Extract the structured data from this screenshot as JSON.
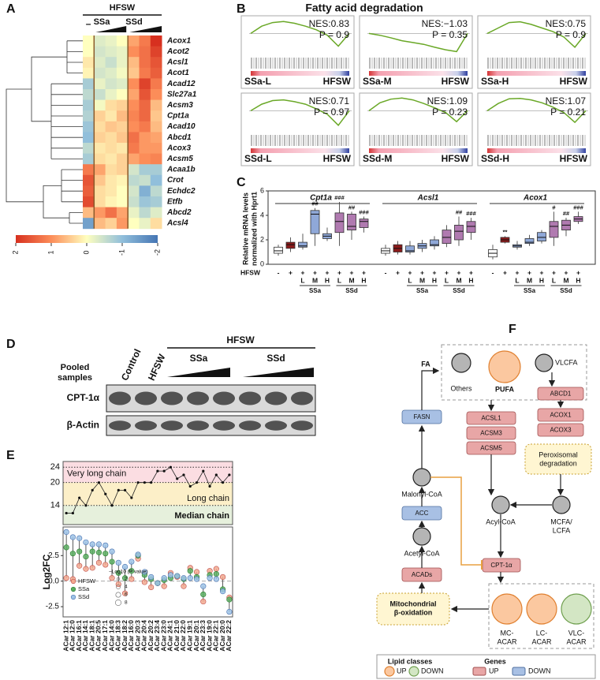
{
  "panel_labels": [
    "A",
    "B",
    "C",
    "D",
    "E",
    "F"
  ],
  "heatmap": {
    "header": "HFSW",
    "control": "–",
    "groups": [
      "SSa",
      "SSd"
    ],
    "genes": [
      "Acox1",
      "Acot2",
      "Acsl1",
      "Acot1",
      "Acad12",
      "Slc27a1",
      "Acsm3",
      "Cpt1a",
      "Acad10",
      "Abcd1",
      "Acox3",
      "Acsm5",
      "Acaa1b",
      "Crot",
      "Echdc2",
      "Etfb",
      "Abcd2",
      "Acsl4"
    ],
    "values": [
      [
        0,
        -0.3,
        -0.2,
        0,
        0.8,
        1.2,
        2.0
      ],
      [
        0,
        -0.4,
        -0.3,
        -0.2,
        1.0,
        1.3,
        1.8
      ],
      [
        0.2,
        -0.3,
        -0.5,
        -0.2,
        0.6,
        1.3,
        1.6
      ],
      [
        0.1,
        -0.4,
        -0.3,
        -0.1,
        0.5,
        1.2,
        1.5
      ],
      [
        -0.8,
        -0.2,
        -0.4,
        -0.3,
        1.0,
        1.8,
        1.2
      ],
      [
        -0.6,
        -0.5,
        -0.2,
        0,
        0.8,
        1.6,
        1.0
      ],
      [
        -0.8,
        -0.1,
        0.3,
        0.4,
        1.0,
        1.4,
        0.6
      ],
      [
        -0.7,
        0.4,
        0.2,
        0.6,
        1.1,
        1.4,
        0.5
      ],
      [
        -0.9,
        0.3,
        0.5,
        0.4,
        1.0,
        1.2,
        0.6
      ],
      [
        -1.0,
        0.4,
        0.3,
        0.5,
        1.3,
        0.9,
        0.8
      ],
      [
        -0.6,
        0.2,
        0.3,
        0.2,
        1.2,
        0.9,
        0.9
      ],
      [
        -0.8,
        0.3,
        0.2,
        0.4,
        0.8,
        1.0,
        1.1
      ],
      [
        1.2,
        0.8,
        0.3,
        0.4,
        -0.4,
        -0.8,
        -0.8
      ],
      [
        1.6,
        0.5,
        0.2,
        0.1,
        -0.6,
        -0.5,
        -1.0
      ],
      [
        1.5,
        0.3,
        0.2,
        0.0,
        -0.4,
        -1.2,
        -0.6
      ],
      [
        1.7,
        0.3,
        0.1,
        0.0,
        -0.5,
        -0.9,
        -0.8
      ],
      [
        0.6,
        0.9,
        1.3,
        0.8,
        -0.2,
        -0.6,
        -0.3
      ],
      [
        -1.4,
        0.6,
        0.4,
        0.9,
        0.0,
        -0.2,
        0.3
      ]
    ],
    "scale_ticks": [
      2,
      1,
      0,
      -1,
      -2
    ],
    "scale_colors": [
      "#d7301f",
      "#fc8d59",
      "#ffffbf",
      "#91bfdb",
      "#4575b4"
    ]
  },
  "gsea": {
    "title": "Fatty acid degradation",
    "es_ylim": [
      -0.6,
      0.4
    ],
    "plots": [
      {
        "group": "SSa-L",
        "ref": "HFSW",
        "nes": "NES:0.83",
        "p": "P = 0.9",
        "es": [
          0,
          0.2,
          0.3,
          0.33,
          0.28,
          0.2,
          0.1,
          -0.05,
          -0.35,
          0
        ]
      },
      {
        "group": "SSa-M",
        "ref": "HFSW",
        "nes": "NES:−1.03",
        "p": "P = 0.35",
        "es": [
          0,
          -0.05,
          -0.12,
          -0.2,
          -0.25,
          -0.3,
          -0.38,
          -0.45,
          -0.5,
          0
        ]
      },
      {
        "group": "SSa-H",
        "ref": "HFSW",
        "nes": "NES:0.75",
        "p": "P = 0.9",
        "es": [
          0,
          0.15,
          0.3,
          0.32,
          0.25,
          0.15,
          0.05,
          -0.1,
          -0.38,
          0
        ]
      },
      {
        "group": "SSd-L",
        "ref": "HFSW",
        "nes": "NES:0.71",
        "p": "P = 0.97",
        "es": [
          0,
          0.18,
          0.28,
          0.3,
          0.25,
          0.18,
          0.05,
          -0.1,
          -0.4,
          0
        ]
      },
      {
        "group": "SSd-M",
        "ref": "HFSW",
        "nes": "NES:1.09",
        "p": "P = 0.23",
        "es": [
          0,
          0.22,
          0.32,
          0.35,
          0.3,
          0.2,
          0.08,
          -0.05,
          -0.3,
          0
        ]
      },
      {
        "group": "SSd-H",
        "ref": "HFSW",
        "nes": "NES:1.07",
        "p": "P = 0.21",
        "es": [
          0,
          0.2,
          0.33,
          0.34,
          0.3,
          0.22,
          0.1,
          -0.05,
          -0.32,
          0
        ]
      }
    ]
  },
  "qpcr": {
    "ylabel": [
      "Relative mRNA levels",
      "normalized with Hprt1"
    ],
    "ylim": [
      0,
      6
    ],
    "yticks": [
      0,
      2,
      4,
      6
    ],
    "hfsw_label": "HFSW",
    "signs": [
      "-",
      "+",
      "+",
      "+",
      "+",
      "+",
      "+",
      "+"
    ],
    "doses": [
      null,
      null,
      "L",
      "M",
      "H",
      "L",
      "M",
      "H"
    ],
    "groups": [
      "SSa",
      "SSd"
    ],
    "colors": [
      "#ffffff",
      "#8b1a1a",
      "#8fa8d8",
      "#8fa8d8",
      "#8fa8d8",
      "#b07ab0",
      "#b07ab0",
      "#b07ab0"
    ],
    "genes": [
      {
        "name": "Cpt1a",
        "boxes": [
          [
            0.7,
            0.9,
            1.1,
            1.4,
            1.6
          ],
          [
            1.0,
            1.3,
            1.6,
            1.8,
            2.2
          ],
          [
            1.2,
            1.4,
            1.5,
            1.8,
            2.5
          ],
          [
            1.5,
            2.5,
            4.1,
            4.4,
            4.6
          ],
          [
            1.9,
            2.1,
            2.3,
            2.5,
            3.0
          ],
          [
            1.5,
            2.6,
            3.5,
            4.2,
            5.1
          ],
          [
            2.0,
            2.8,
            3.1,
            4.1,
            4.3
          ],
          [
            2.6,
            3.0,
            3.5,
            3.7,
            3.9
          ]
        ],
        "marks": [
          null,
          null,
          null,
          "##",
          null,
          "###",
          "##",
          "###"
        ]
      },
      {
        "name": "Acsl1",
        "boxes": [
          [
            0.7,
            0.9,
            1.1,
            1.3,
            1.6
          ],
          [
            0.8,
            1.0,
            1.3,
            1.6,
            1.9
          ],
          [
            0.8,
            1.0,
            1.1,
            1.5,
            1.9
          ],
          [
            1.0,
            1.3,
            1.5,
            1.7,
            2.0
          ],
          [
            1.2,
            1.5,
            1.6,
            2.0,
            2.3
          ],
          [
            1.4,
            1.7,
            2.2,
            2.8,
            3.2
          ],
          [
            1.5,
            2.0,
            2.7,
            3.2,
            3.9
          ],
          [
            2.0,
            2.6,
            3.1,
            3.5,
            3.8
          ]
        ],
        "marks": [
          null,
          null,
          null,
          null,
          null,
          null,
          "##",
          "###"
        ]
      },
      {
        "name": "Acox1",
        "boxes": [
          [
            0.4,
            0.6,
            0.9,
            1.2,
            1.6
          ],
          [
            1.7,
            1.8,
            2.0,
            2.2,
            2.3
          ],
          [
            1.2,
            1.4,
            1.5,
            1.6,
            1.9
          ],
          [
            1.5,
            1.7,
            1.8,
            2.1,
            2.4
          ],
          [
            1.7,
            1.9,
            2.2,
            2.6,
            2.8
          ],
          [
            1.5,
            2.2,
            3.1,
            3.5,
            4.3
          ],
          [
            2.3,
            2.8,
            3.2,
            3.6,
            3.8
          ],
          [
            3.3,
            3.5,
            3.7,
            3.9,
            4.3
          ]
        ],
        "marks": [
          null,
          "**",
          null,
          null,
          null,
          "#",
          "##",
          "###"
        ]
      }
    ]
  },
  "western": {
    "row_label": [
      "Pooled",
      "samples"
    ],
    "columns": [
      "Control",
      "HFSW"
    ],
    "header": "HFSW",
    "groups": [
      "SSa",
      "SSd"
    ],
    "bands": [
      "CPT-1α",
      "β-Actin"
    ]
  },
  "chain": {
    "ylim": [
      9,
      25.5
    ],
    "yticks": [
      14,
      20,
      24
    ],
    "values": [
      12,
      12,
      16,
      14,
      18,
      20,
      17,
      14,
      18,
      18,
      16,
      20,
      20,
      20,
      23,
      23,
      24,
      21,
      22,
      19,
      20,
      23,
      19,
      22,
      20,
      22
    ],
    "bands": [
      {
        "label": "Very long chain",
        "from": 20,
        "to": 25.5,
        "color": "#fbdde2",
        "text": "#c0182a"
      },
      {
        "label": "Long chain",
        "from": 14,
        "to": 20,
        "color": "#fcefc8",
        "text": "#e0900a"
      },
      {
        "label": "Median chain",
        "from": 9,
        "to": 14,
        "color": "#e6f0dc",
        "text": "#2c9a4a"
      }
    ]
  },
  "lollipop": {
    "ylabel": "Log2FC",
    "ylim": [
      -3.5,
      5.3
    ],
    "yticks": [
      -2.5,
      {
        "value": 0,
        "label": "0.0"
      },
      2.5
    ],
    "compounds": [
      "ACar 12:1",
      "ACar 12:0",
      "ACar 16:1",
      "ACar 14:1",
      "ACar 18:1",
      "ACar 20:5",
      "ACar 17:1",
      "ACar 14:0",
      "ACar 18:3",
      "ACar 18:2",
      "ACar 16:0",
      "ACar 20:3",
      "ACar 20:4",
      "ACar 20:2",
      "ACar 23:4",
      "ACar 23:0",
      "ACar 24:1",
      "ACar 21:0",
      "ACar 22:0",
      "ACar 19:1",
      "ACar 20:1",
      "ACar 23:3",
      "ACar 19:0",
      "ACar 22:1",
      "ACar 20:0",
      "ACar 22:2"
    ],
    "series": [
      {
        "name": "HFSW",
        "color": "#f2a98f",
        "stroke": "#c0504d",
        "values": [
          0.3,
          0.2,
          1.5,
          1.2,
          1.3,
          1.8,
          1.6,
          0.3,
          -0.3,
          -1.2,
          0.2,
          2.2,
          -0.1,
          -0.6,
          -0.2,
          -0.5,
          0.8,
          0.4,
          -0.5,
          1.3,
          0.9,
          -2.0,
          1.0,
          1.2,
          0.4,
          -1.6
        ]
      },
      {
        "name": "SSa",
        "color": "#5aae61",
        "stroke": "#2e7d32",
        "values": [
          3.3,
          2.7,
          2.9,
          2.4,
          2.9,
          2.8,
          2.7,
          1.9,
          0.8,
          0.3,
          1.0,
          2.5,
          0.6,
          0.2,
          -0.2,
          0.1,
          0.3,
          0.5,
          0.2,
          1.0,
          0.4,
          -1.3,
          0.6,
          0.7,
          -0.8,
          -1.8
        ]
      },
      {
        "name": "SSd",
        "color": "#9ec3e6",
        "stroke": "#4a72b0",
        "values": [
          4.8,
          4.3,
          4.2,
          3.8,
          3.6,
          3.6,
          3.5,
          2.9,
          1.8,
          1.4,
          1.9,
          2.6,
          0.9,
          0.4,
          -0.2,
          0.3,
          0.6,
          0.5,
          0.3,
          0.3,
          0.2,
          -0.5,
          0.3,
          0.2,
          -1.0,
          -3.0
        ]
      }
    ],
    "size_legend": {
      "title": "−Log10 (P value)",
      "values": [
        2,
        4,
        6,
        8
      ]
    }
  },
  "pathway": {
    "fa": "FA",
    "others": "Others",
    "pufa": "PUFA",
    "vlcfa": "VLCFA",
    "abcd1": "ABCD1",
    "fasn": "FASN",
    "acsl1": "ACSL1",
    "acsm3": "ACSM3",
    "acsm5": "ACSM5",
    "acox1": "ACOX1",
    "acox3": "ACOX3",
    "peroxisomal": [
      "Peroxisomal",
      "degradation"
    ],
    "malonyl": "Malonyl-CoA",
    "acc": "ACC",
    "acyl": "Acyl-CoA",
    "mcfa": [
      "MCFA/",
      "LCFA"
    ],
    "acetyl": "Acetyl-CoA",
    "cpt1a": "CPT-1α",
    "acads": "ACADs",
    "mito": [
      "Mitochondrial",
      "β-oxidation"
    ],
    "mc_acar": [
      "MC-",
      "ACAR"
    ],
    "lc_acar": [
      "LC-",
      "ACAR"
    ],
    "vlc_acar": [
      "VLC-",
      "ACAR"
    ],
    "legend": {
      "lipid_classes": "Lipid classes",
      "genes": "Genes",
      "up": "UP",
      "down": "DOWN"
    }
  }
}
